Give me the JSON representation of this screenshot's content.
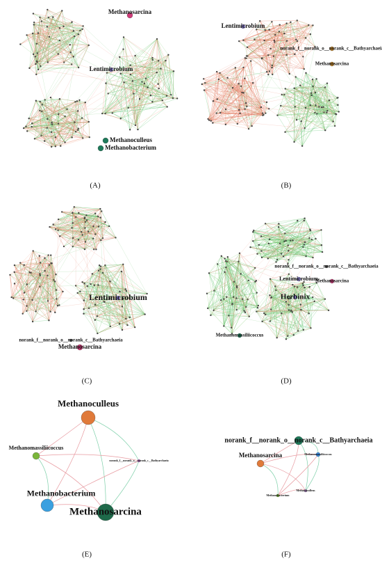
{
  "panels": [
    {
      "label": "(A)",
      "nodes": [
        {
          "label": "Methanosarcina"
        },
        {
          "label": "Lentimicrobium"
        },
        {
          "label": "Methanoculleus"
        },
        {
          "label": "Methanobacterium"
        }
      ]
    },
    {
      "label": "(B)",
      "nodes": [
        {
          "label": "Lentimicrobium"
        },
        {
          "label": "norank_f__norank_o__norank_c__Bathyarchaeia"
        },
        {
          "label": "Methanosarcina"
        }
      ]
    },
    {
      "label": "(C)",
      "nodes": [
        {
          "label": "Lentimicrobium"
        },
        {
          "label": "norank_f__norank_o__norank_c__Bathyarchaeia"
        },
        {
          "label": "Methanosarcina"
        }
      ]
    },
    {
      "label": "(D)",
      "nodes": [
        {
          "label": "norank_f__norank_o__norank_c__Bathyarchaeia"
        },
        {
          "label": "Lentimicrobium"
        },
        {
          "label": "Methanosarcina"
        },
        {
          "label": "Herbinix"
        },
        {
          "label": "Methanomassiliicoccus"
        }
      ]
    },
    {
      "label": "(E)",
      "nodes": [
        {
          "label": "Methanoculleus"
        },
        {
          "label": "Methanomassiliicoccus"
        },
        {
          "label": "norank_f__norank_o__norank_c__Bathyarchaeia"
        },
        {
          "label": "Methanobacterium"
        },
        {
          "label": "Methanosarcina"
        }
      ]
    },
    {
      "label": "(F)",
      "nodes": [
        {
          "label": "norank_f__norank_o__norank_c__Bathyarchaeia"
        },
        {
          "label": "Methanosarcina"
        },
        {
          "label": "Methanomassiliicoccus"
        },
        {
          "label": "Methanobacterium"
        },
        {
          "label": "Methanoculleus"
        }
      ]
    }
  ]
}
